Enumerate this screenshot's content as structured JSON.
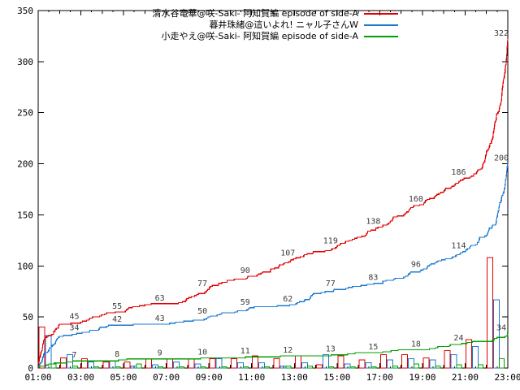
{
  "chart_data": {
    "type": "line",
    "title": "",
    "xlabel": "",
    "ylabel": "",
    "grid": false,
    "legend_position": "top-center",
    "x_axis": {
      "range_hours": [
        1,
        23
      ],
      "major_tick_hours": [
        1,
        3,
        5,
        7,
        9,
        11,
        13,
        15,
        17,
        19,
        21,
        23
      ],
      "major_tick_labels": [
        "01:00",
        "03:00",
        "05:00",
        "07:00",
        "09:00",
        "11:00",
        "13:00",
        "15:00",
        "17:00",
        "19:00",
        "21:00",
        "23:00"
      ]
    },
    "y_axis": {
      "range": [
        0,
        350
      ],
      "tick_values": [
        0,
        50,
        100,
        150,
        200,
        250,
        300,
        350
      ],
      "tick_labels": [
        "0",
        "50",
        "100",
        "150",
        "200",
        "250",
        "300",
        "350"
      ]
    },
    "annotation_hours": [
      3,
      5,
      7,
      9,
      11,
      13,
      15,
      17,
      19,
      21,
      23
    ],
    "series": [
      {
        "name": "清水谷竜華@咲-Saki- 阿知賀編 episode of side-A",
        "color": "#e00000",
        "annotated_values": [
          45,
          55,
          63,
          77,
          90,
          107,
          119,
          138,
          160,
          186,
          322
        ],
        "shape_points": [
          [
            1,
            4
          ],
          [
            1.3,
            28
          ],
          [
            2,
            43
          ],
          [
            3,
            45
          ],
          [
            5,
            55
          ],
          [
            7,
            63
          ],
          [
            9,
            77
          ],
          [
            11,
            90
          ],
          [
            13,
            107
          ],
          [
            15,
            119
          ],
          [
            17,
            138
          ],
          [
            19,
            160
          ],
          [
            21,
            186
          ],
          [
            21.8,
            196
          ],
          [
            22.3,
            225
          ],
          [
            22.7,
            262
          ],
          [
            22.93,
            300
          ],
          [
            23,
            322
          ]
        ]
      },
      {
        "name": "暮井珠緒@這いよれ! ニャル子さんW",
        "color": "#1c78d0",
        "annotated_values": [
          34,
          42,
          43,
          50,
          59,
          62,
          77,
          83,
          96,
          114,
          200
        ],
        "shape_points": [
          [
            1,
            2
          ],
          [
            1.4,
            15
          ],
          [
            2,
            31
          ],
          [
            3,
            34
          ],
          [
            5,
            42
          ],
          [
            7,
            43
          ],
          [
            9,
            50
          ],
          [
            11,
            59
          ],
          [
            13,
            62
          ],
          [
            15,
            77
          ],
          [
            17,
            83
          ],
          [
            19,
            96
          ],
          [
            21,
            114
          ],
          [
            22,
            130
          ],
          [
            22.5,
            148
          ],
          [
            22.8,
            172
          ],
          [
            22.95,
            192
          ],
          [
            23,
            200
          ]
        ]
      },
      {
        "name": "小走やえ@咲-Saki- 阿知賀編 episode of side-A",
        "color": "#00a000",
        "annotated_values": [
          7,
          8,
          9,
          10,
          11,
          12,
          13,
          15,
          18,
          24,
          34
        ],
        "shape_points": [
          [
            1,
            1
          ],
          [
            1.5,
            4
          ],
          [
            2,
            5
          ],
          [
            3,
            7
          ],
          [
            5,
            8
          ],
          [
            7,
            9
          ],
          [
            9,
            10
          ],
          [
            11,
            11
          ],
          [
            13,
            12
          ],
          [
            15,
            13
          ],
          [
            17,
            15
          ],
          [
            19,
            18
          ],
          [
            21,
            24
          ],
          [
            22,
            26
          ],
          [
            22.8,
            30
          ],
          [
            23,
            34
          ]
        ]
      }
    ],
    "hourly_bars": {
      "hours": [
        1,
        2,
        3,
        4,
        5,
        6,
        7,
        8,
        9,
        10,
        11,
        12,
        13,
        14,
        15,
        16,
        17,
        18,
        19,
        20,
        21,
        22
      ],
      "series": [
        {
          "color": "#e00000",
          "values": [
            40,
            10,
            9,
            6,
            6,
            9,
            9,
            9,
            9,
            9,
            12,
            9,
            12,
            3,
            12,
            8,
            13,
            13,
            10,
            17,
            28,
            108
          ]
        },
        {
          "color": "#1c78d0",
          "values": [
            32,
            13,
            6,
            7,
            2,
            3,
            6,
            4,
            9,
            5,
            5,
            2,
            5,
            13,
            4,
            5,
            8,
            9,
            8,
            13,
            21,
            67
          ]
        },
        {
          "color": "#00a000",
          "values": [
            4,
            2,
            1,
            1,
            4,
            1,
            1,
            1,
            1,
            1,
            1,
            2,
            2,
            1,
            1,
            1,
            2,
            4,
            2,
            3,
            3,
            9
          ]
        }
      ]
    }
  }
}
